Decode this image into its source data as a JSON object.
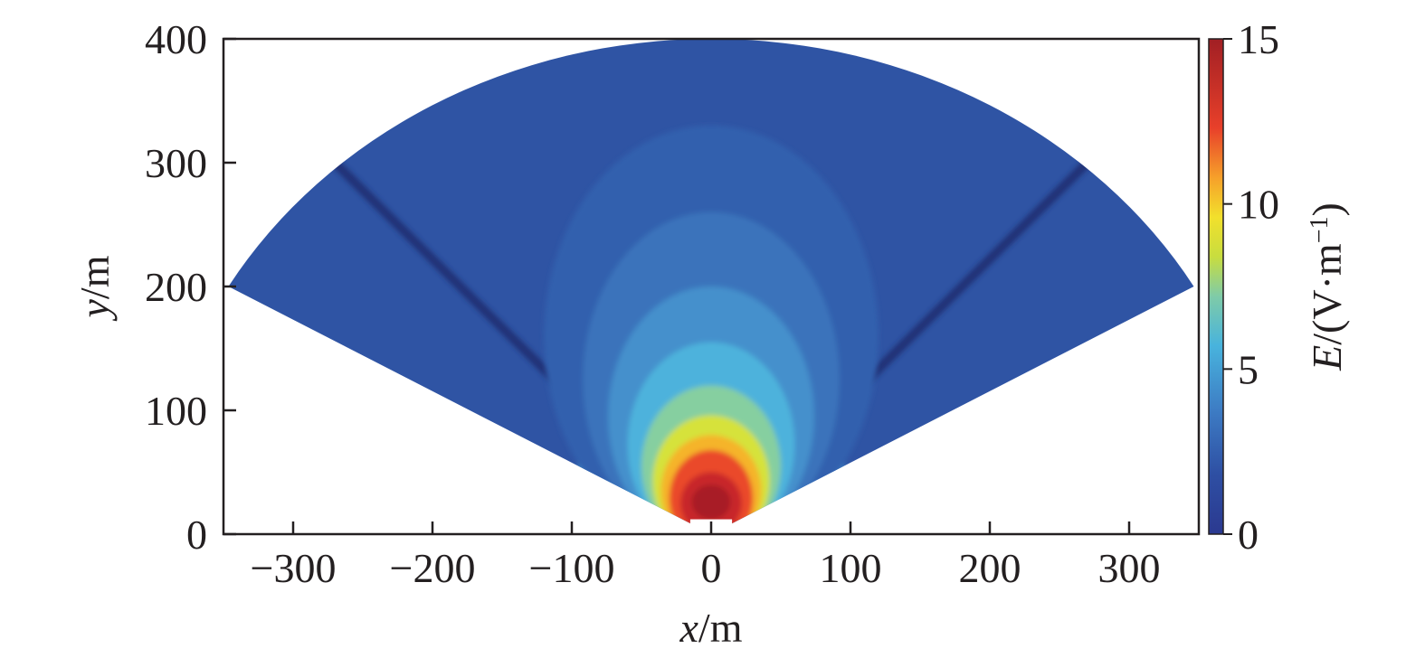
{
  "chart_data": {
    "type": "heatmap",
    "title": "",
    "x_axis": {
      "label_var": "x",
      "label_unit": "/m",
      "range": [
        -350,
        350
      ],
      "ticks": [
        -300,
        -200,
        -100,
        0,
        100,
        200,
        300
      ],
      "tick_labels": [
        "−300",
        "−200",
        "−100",
        "0",
        "100",
        "200",
        "300"
      ]
    },
    "y_axis": {
      "label_var": "y",
      "label_unit": "/m",
      "range": [
        0,
        400
      ],
      "ticks": [
        0,
        100,
        200,
        300,
        400
      ],
      "tick_labels": [
        "0",
        "100",
        "200",
        "300",
        "400"
      ]
    },
    "colorbar": {
      "label_var": "E",
      "label_unit_open": "/(V·m",
      "label_unit_sup": "−1",
      "label_unit_close": ")",
      "range": [
        0,
        15
      ],
      "ticks": [
        0,
        5,
        10,
        15
      ],
      "tick_labels": [
        "0",
        "5",
        "10",
        "15"
      ],
      "colormap": "jet"
    },
    "field": {
      "shape": "fan sector",
      "apex": [
        0,
        0
      ],
      "radius": 400,
      "angle_from_vertical_deg": 60,
      "peak_value": 15,
      "peak_location": [
        0,
        30
      ],
      "dark_line_angles_from_vertical_deg": [
        -42,
        42
      ],
      "dark_line_value": 0.5
    },
    "grid": false,
    "legend": "none"
  }
}
